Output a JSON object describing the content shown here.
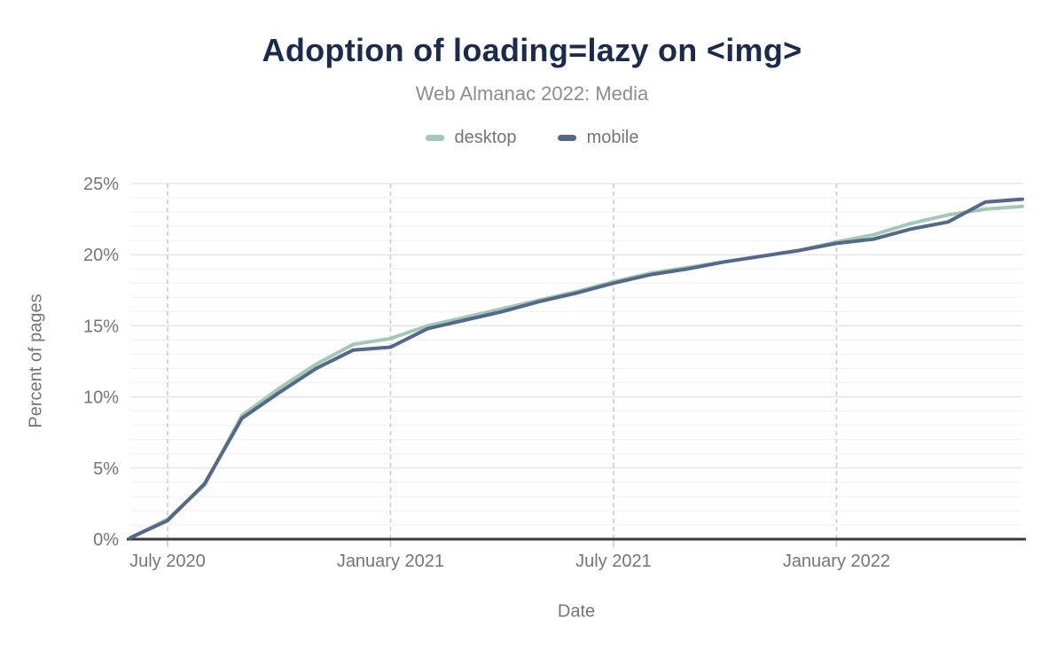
{
  "header": {
    "title": "Adoption of loading=lazy on <img>",
    "subtitle": "Web Almanac 2022: Media"
  },
  "legend": [
    {
      "label": "desktop",
      "color": "#a3c9b6"
    },
    {
      "label": "mobile",
      "color": "#54688c"
    }
  ],
  "axes": {
    "y_title": "Percent of pages",
    "x_title": "Date"
  },
  "colors": {
    "title": "#1b2b4e",
    "subtitle": "#8d8d8d",
    "tick_label": "#757575",
    "axis_line": "#3b3b3b",
    "grid_minor": "#efefef",
    "grid_major": "#dcdcdc",
    "grid_vertical_dashed": "#c9c9c9"
  },
  "chart_data": {
    "type": "line",
    "title": "Adoption of loading=lazy on <img>",
    "subtitle": "Web Almanac 2022: Media",
    "xlabel": "Date",
    "ylabel": "Percent of pages",
    "y_unit": "%",
    "ylim": [
      0,
      25
    ],
    "grid": true,
    "legend_position": "top",
    "x": [
      "2020-06",
      "2020-07",
      "2020-08",
      "2020-09",
      "2020-10",
      "2020-11",
      "2020-12",
      "2021-01",
      "2021-02",
      "2021-03",
      "2021-04",
      "2021-05",
      "2021-06",
      "2021-07",
      "2021-08",
      "2021-09",
      "2021-10",
      "2021-11",
      "2021-12",
      "2022-01",
      "2022-02",
      "2022-03",
      "2022-04",
      "2022-05",
      "2022-06"
    ],
    "series": [
      {
        "name": "desktop",
        "color": "#a3c9b6",
        "values": [
          0.1,
          1.4,
          3.8,
          8.7,
          10.6,
          12.3,
          13.7,
          14.1,
          15.0,
          15.6,
          16.2,
          16.8,
          17.4,
          18.1,
          18.7,
          19.1,
          19.5,
          19.9,
          20.3,
          20.9,
          21.4,
          22.2,
          22.8,
          23.2,
          23.4
        ]
      },
      {
        "name": "mobile",
        "color": "#54688c",
        "values": [
          0.1,
          1.3,
          3.9,
          8.5,
          10.3,
          12.0,
          13.3,
          13.5,
          14.8,
          15.4,
          16.0,
          16.7,
          17.3,
          18.0,
          18.6,
          19.0,
          19.5,
          19.9,
          20.3,
          20.8,
          21.1,
          21.8,
          22.3,
          23.7,
          23.9
        ]
      }
    ],
    "yticks": {
      "values": [
        0,
        5,
        10,
        15,
        20,
        25
      ],
      "labels": [
        "0%",
        "5%",
        "10%",
        "15%",
        "20%",
        "25%"
      ]
    },
    "xticks": {
      "indices": [
        1,
        7,
        13,
        19
      ],
      "labels": [
        "July 2020",
        "January 2021",
        "July 2021",
        "January 2022"
      ]
    }
  }
}
